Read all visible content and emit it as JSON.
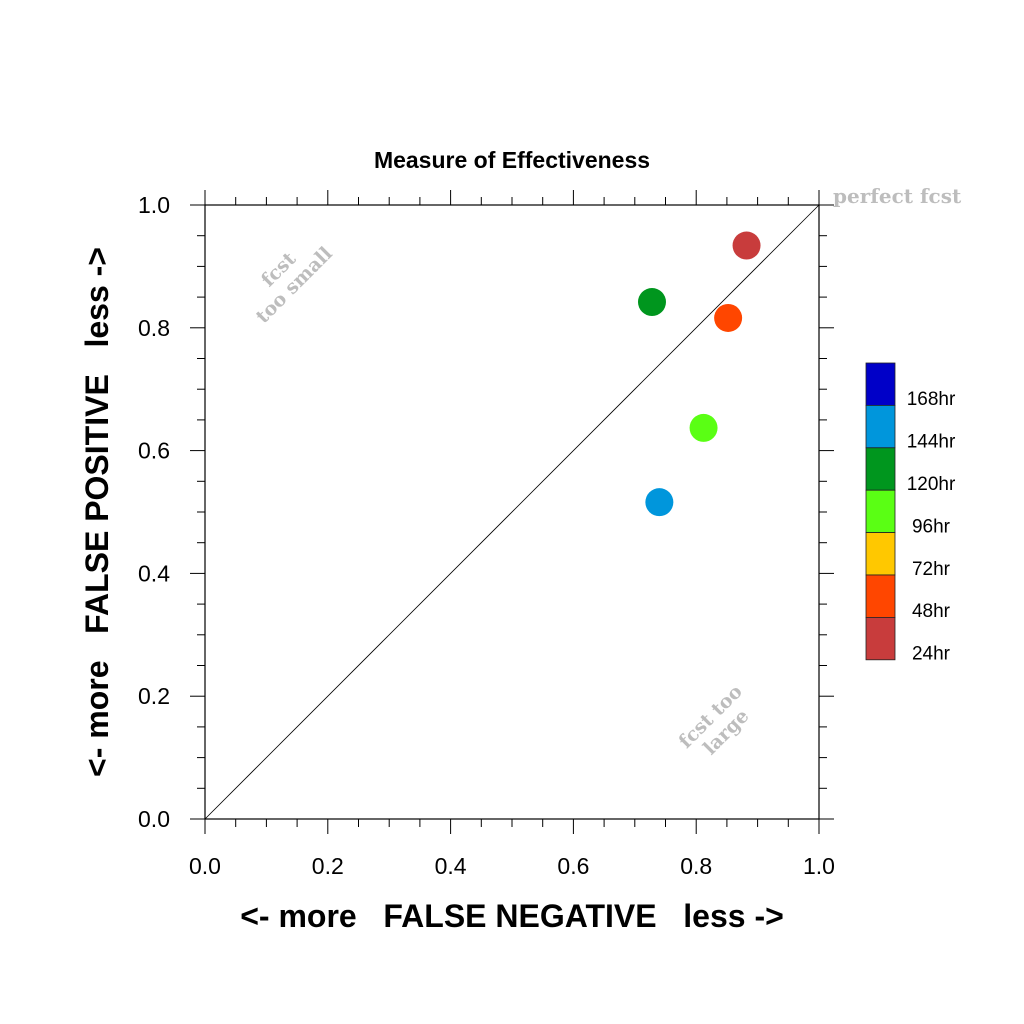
{
  "chart_data": {
    "type": "scatter",
    "title": "Measure of Effectiveness",
    "xlabel": "<- more   FALSE NEGATIVE   less ->",
    "ylabel": "<- more   FALSE POSITIVE   less ->",
    "xlim": [
      0.0,
      1.0
    ],
    "ylim": [
      0.0,
      1.0
    ],
    "x_ticks": [
      "0.0",
      "0.2",
      "0.4",
      "0.6",
      "0.8",
      "1.0"
    ],
    "y_ticks": [
      "0.0",
      "0.2",
      "0.4",
      "0.6",
      "0.8",
      "1.0"
    ],
    "grid": false,
    "diagonal_reference_line": true,
    "annotations": {
      "perfect": "perfect fcst",
      "small_line1": "fcst",
      "small_line2": "too small",
      "large_line1": "fcst too",
      "large_line2": "large"
    },
    "legend": {
      "placement": "right",
      "entries": [
        {
          "label": "168hr",
          "color": "#0000c8"
        },
        {
          "label": "144hr",
          "color": "#0096dc"
        },
        {
          "label": "120hr",
          "color": "#00961e"
        },
        {
          "label": "96hr",
          "color": "#5aff14"
        },
        {
          "label": "72hr",
          "color": "#ffc800"
        },
        {
          "label": "48hr",
          "color": "#ff4600"
        },
        {
          "label": "24hr",
          "color": "#c83c3c"
        }
      ]
    },
    "points": [
      {
        "lead": "24hr",
        "x": 0.882,
        "y": 0.934,
        "color": "#c83c3c"
      },
      {
        "lead": "48hr",
        "x": 0.852,
        "y": 0.816,
        "color": "#ff4600"
      },
      {
        "lead": "96hr",
        "x": 0.812,
        "y": 0.637,
        "color": "#5aff14"
      },
      {
        "lead": "120hr",
        "x": 0.728,
        "y": 0.842,
        "color": "#00961e"
      },
      {
        "lead": "144hr",
        "x": 0.74,
        "y": 0.516,
        "color": "#0096dc"
      }
    ]
  }
}
